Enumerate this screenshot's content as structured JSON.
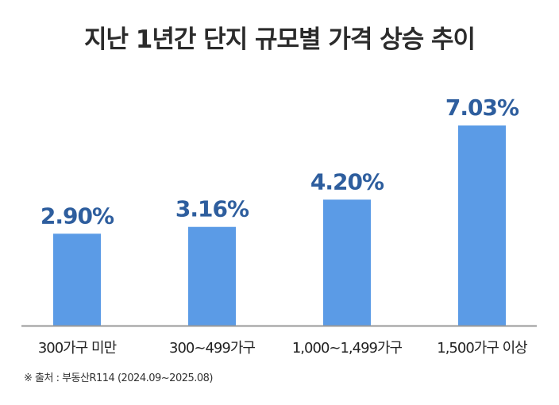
{
  "chart_data": {
    "type": "bar",
    "title": "지난 1년간 단지 규모별 가격 상승 추이",
    "categories": [
      "300가구 미만",
      "300~499가구",
      "1,000~1,499가구",
      "1,500가구 이상"
    ],
    "values": [
      2.9,
      3.16,
      4.2,
      7.03
    ],
    "data_labels": [
      "2.90%",
      "3.16%",
      "4.20%",
      "7.03%"
    ],
    "unit": "%",
    "xlabel": "",
    "ylabel": "",
    "grid": false,
    "legend": "none",
    "colors": {
      "bar": "#5b9be6",
      "label": "#2e5e9e",
      "axis": "#999999"
    }
  },
  "source": "※ 출처 : 부동산R114 (2024.09~2025.08)"
}
